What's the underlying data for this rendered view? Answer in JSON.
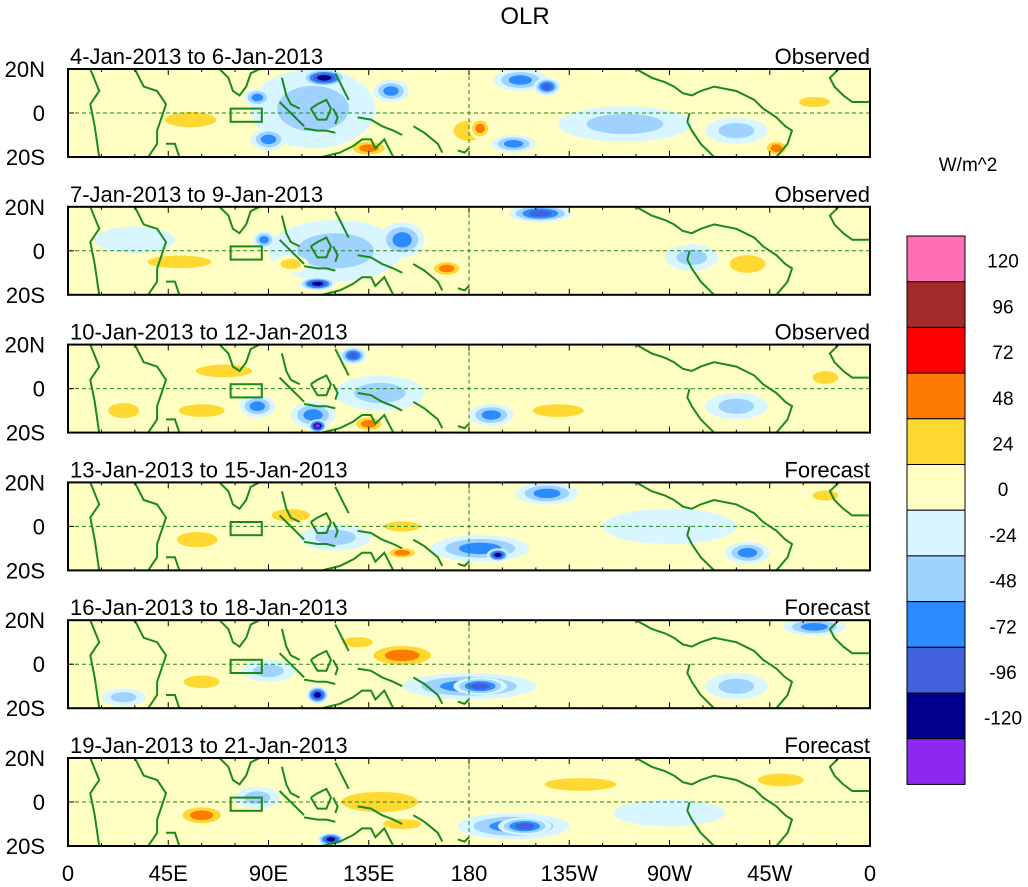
{
  "chart_data": {
    "type": "heatmap",
    "title": "OLR",
    "units_label": "W/m^2",
    "x_ticks": [
      "0",
      "45E",
      "90E",
      "135E",
      "180",
      "135W",
      "90W",
      "45W",
      "0"
    ],
    "lat_ticks": [
      "20N",
      "0",
      "20S"
    ],
    "lat_range": [
      -20,
      20
    ],
    "lon_range": [
      0,
      360
    ],
    "legend_ticks": [
      "120",
      "96",
      "72",
      "48",
      "24",
      "0",
      "-24",
      "-48",
      "-72",
      "-96",
      "-120"
    ],
    "color_bins": [
      {
        "lo": 120,
        "hi": 144,
        "color": "#ff6eb4"
      },
      {
        "lo": 96,
        "hi": 120,
        "color": "#a52a2a"
      },
      {
        "lo": 72,
        "hi": 96,
        "color": "#ff0000"
      },
      {
        "lo": 48,
        "hi": 72,
        "color": "#ff7a00"
      },
      {
        "lo": 24,
        "hi": 48,
        "color": "#ffd832"
      },
      {
        "lo": 0,
        "hi": 24,
        "color": "#ffffc4"
      },
      {
        "lo": -24,
        "hi": 0,
        "color": "#d8f6ff"
      },
      {
        "lo": -48,
        "hi": -24,
        "color": "#a0d2ff"
      },
      {
        "lo": -72,
        "hi": -48,
        "color": "#2a8cff"
      },
      {
        "lo": -96,
        "hi": -72,
        "color": "#4060dc"
      },
      {
        "lo": -120,
        "hi": -96,
        "color": "#00008c"
      },
      {
        "lo": -144,
        "hi": -120,
        "color": "#8c28f0"
      }
    ],
    "panels": [
      {
        "period": "4-Jan-2013 to 6-Jan-2013",
        "kind": "Observed",
        "anomalies": [
          {
            "lon": 110,
            "lat": 2,
            "rlon": 28,
            "rlat": 18,
            "value": -30
          },
          {
            "lon": 115,
            "lat": 16,
            "rlon": 10,
            "rlat": 4,
            "value": -110
          },
          {
            "lon": 85,
            "lat": 7,
            "rlon": 6,
            "rlat": 4,
            "value": -60
          },
          {
            "lon": 145,
            "lat": 10,
            "rlon": 8,
            "rlat": 5,
            "value": -50
          },
          {
            "lon": 203,
            "lat": 15,
            "rlon": 12,
            "rlat": 5,
            "value": -70
          },
          {
            "lon": 215,
            "lat": 12,
            "rlon": 6,
            "rlat": 4,
            "value": -96
          },
          {
            "lon": 200,
            "lat": -14,
            "rlon": 10,
            "rlat": 4,
            "value": -55
          },
          {
            "lon": 90,
            "lat": -12,
            "rlon": 8,
            "rlat": 5,
            "value": -50
          },
          {
            "lon": 55,
            "lat": -3,
            "rlon": 20,
            "rlat": 6,
            "value": 30
          },
          {
            "lon": 180,
            "lat": -8,
            "rlon": 12,
            "rlat": 8,
            "value": 30
          },
          {
            "lon": 185,
            "lat": -7,
            "rlon": 5,
            "rlat": 5,
            "value": 55
          },
          {
            "lon": 135,
            "lat": -16,
            "rlon": 10,
            "rlat": 4,
            "value": 50
          },
          {
            "lon": 318,
            "lat": -16,
            "rlon": 6,
            "rlat": 4,
            "value": 55
          },
          {
            "lon": 300,
            "lat": -8,
            "rlon": 14,
            "rlat": 6,
            "value": -30
          },
          {
            "lon": 250,
            "lat": -5,
            "rlon": 30,
            "rlat": 8,
            "value": -25
          },
          {
            "lon": 335,
            "lat": 5,
            "rlon": 12,
            "rlat": 4,
            "value": 28
          }
        ]
      },
      {
        "period": "7-Jan-2013 to 9-Jan-2013",
        "kind": "Observed",
        "anomalies": [
          {
            "lon": 120,
            "lat": 0,
            "rlon": 30,
            "rlat": 14,
            "value": -35
          },
          {
            "lon": 112,
            "lat": -15,
            "rlon": 8,
            "rlat": 3,
            "value": -110
          },
          {
            "lon": 150,
            "lat": 5,
            "rlon": 10,
            "rlat": 8,
            "value": -55
          },
          {
            "lon": 212,
            "lat": 17,
            "rlon": 14,
            "rlat": 4,
            "value": -80
          },
          {
            "lon": 88,
            "lat": 5,
            "rlon": 5,
            "rlat": 4,
            "value": -55
          },
          {
            "lon": 170,
            "lat": -8,
            "rlon": 8,
            "rlat": 4,
            "value": 60
          },
          {
            "lon": 50,
            "lat": -5,
            "rlon": 25,
            "rlat": 5,
            "value": 28
          },
          {
            "lon": 100,
            "lat": -6,
            "rlon": 8,
            "rlat": 4,
            "value": 30
          },
          {
            "lon": 305,
            "lat": -6,
            "rlon": 14,
            "rlat": 7,
            "value": 30
          },
          {
            "lon": 280,
            "lat": -3,
            "rlon": 12,
            "rlat": 6,
            "value": -25
          },
          {
            "lon": 30,
            "lat": 5,
            "rlon": 18,
            "rlat": 6,
            "value": -20
          }
        ]
      },
      {
        "period": "10-Jan-2013 to 12-Jan-2013",
        "kind": "Observed",
        "anomalies": [
          {
            "lon": 110,
            "lat": -12,
            "rlon": 10,
            "rlat": 6,
            "value": -60
          },
          {
            "lon": 112,
            "lat": -17,
            "rlon": 4,
            "rlat": 3,
            "value": -130
          },
          {
            "lon": 128,
            "lat": 15,
            "rlon": 6,
            "rlat": 4,
            "value": -90
          },
          {
            "lon": 140,
            "lat": -2,
            "rlon": 20,
            "rlat": 8,
            "value": -30
          },
          {
            "lon": 190,
            "lat": -12,
            "rlon": 10,
            "rlat": 5,
            "value": -60
          },
          {
            "lon": 85,
            "lat": -8,
            "rlon": 8,
            "rlat": 5,
            "value": -55
          },
          {
            "lon": 70,
            "lat": 8,
            "rlon": 22,
            "rlat": 5,
            "value": 30
          },
          {
            "lon": 60,
            "lat": -10,
            "rlon": 18,
            "rlat": 5,
            "value": 30
          },
          {
            "lon": 135,
            "lat": -16,
            "rlon": 8,
            "rlat": 4,
            "value": 50
          },
          {
            "lon": 220,
            "lat": -10,
            "rlon": 20,
            "rlat": 5,
            "value": 28
          },
          {
            "lon": 340,
            "lat": 5,
            "rlon": 10,
            "rlat": 5,
            "value": 30
          },
          {
            "lon": 300,
            "lat": -8,
            "rlon": 14,
            "rlat": 6,
            "value": -30
          },
          {
            "lon": 25,
            "lat": -10,
            "rlon": 12,
            "rlat": 6,
            "value": 25
          }
        ]
      },
      {
        "period": "13-Jan-2013 to 15-Jan-2013",
        "kind": "Forecast",
        "anomalies": [
          {
            "lon": 185,
            "lat": -10,
            "rlon": 22,
            "rlat": 6,
            "value": -50
          },
          {
            "lon": 193,
            "lat": -13,
            "rlon": 5,
            "rlat": 3,
            "value": -110
          },
          {
            "lon": 120,
            "lat": -5,
            "rlon": 16,
            "rlat": 6,
            "value": -45
          },
          {
            "lon": 215,
            "lat": 15,
            "rlon": 14,
            "rlat": 5,
            "value": -70
          },
          {
            "lon": 305,
            "lat": -12,
            "rlon": 10,
            "rlat": 5,
            "value": -65
          },
          {
            "lon": 58,
            "lat": -6,
            "rlon": 16,
            "rlat": 6,
            "value": 45
          },
          {
            "lon": 150,
            "lat": 0,
            "rlon": 14,
            "rlat": 4,
            "value": 30
          },
          {
            "lon": 150,
            "lat": -12,
            "rlon": 8,
            "rlat": 3,
            "value": 55
          },
          {
            "lon": 100,
            "lat": 5,
            "rlon": 15,
            "rlat": 5,
            "value": 28
          },
          {
            "lon": 340,
            "lat": 14,
            "rlon": 10,
            "rlat": 4,
            "value": 30
          },
          {
            "lon": 270,
            "lat": 0,
            "rlon": 30,
            "rlat": 8,
            "value": -20
          }
        ]
      },
      {
        "period": "16-Jan-2013 to 18-Jan-2013",
        "kind": "Forecast",
        "anomalies": [
          {
            "lon": 180,
            "lat": -10,
            "rlon": 30,
            "rlat": 6,
            "value": -50
          },
          {
            "lon": 185,
            "lat": -10,
            "rlon": 12,
            "rlat": 4,
            "value": -80
          },
          {
            "lon": 112,
            "lat": -14,
            "rlon": 5,
            "rlat": 4,
            "value": -115
          },
          {
            "lon": 90,
            "lat": -3,
            "rlon": 12,
            "rlat": 5,
            "value": -40
          },
          {
            "lon": 335,
            "lat": 17,
            "rlon": 14,
            "rlat": 4,
            "value": -60
          },
          {
            "lon": 150,
            "lat": 4,
            "rlon": 18,
            "rlat": 6,
            "value": 50
          },
          {
            "lon": 60,
            "lat": -8,
            "rlon": 14,
            "rlat": 5,
            "value": 30
          },
          {
            "lon": 130,
            "lat": 10,
            "rlon": 12,
            "rlat": 4,
            "value": 28
          },
          {
            "lon": 300,
            "lat": -10,
            "rlon": 14,
            "rlat": 6,
            "value": -28
          },
          {
            "lon": 25,
            "lat": -15,
            "rlon": 10,
            "rlat": 4,
            "value": -35
          }
        ]
      },
      {
        "period": "19-Jan-2013 to 21-Jan-2013",
        "kind": "Forecast",
        "anomalies": [
          {
            "lon": 200,
            "lat": -11,
            "rlon": 25,
            "rlat": 6,
            "value": -60
          },
          {
            "lon": 205,
            "lat": -11,
            "rlon": 12,
            "rlat": 4,
            "value": -85
          },
          {
            "lon": 118,
            "lat": -17,
            "rlon": 6,
            "rlat": 3,
            "value": -110
          },
          {
            "lon": 60,
            "lat": -6,
            "rlon": 12,
            "rlat": 5,
            "value": 55
          },
          {
            "lon": 140,
            "lat": 0,
            "rlon": 30,
            "rlat": 8,
            "value": 28
          },
          {
            "lon": 150,
            "lat": -10,
            "rlon": 15,
            "rlat": 4,
            "value": 30
          },
          {
            "lon": 230,
            "lat": 8,
            "rlon": 28,
            "rlat": 5,
            "value": 26
          },
          {
            "lon": 320,
            "lat": 10,
            "rlon": 18,
            "rlat": 5,
            "value": 28
          },
          {
            "lon": 85,
            "lat": 2,
            "rlon": 10,
            "rlat": 5,
            "value": -35
          },
          {
            "lon": 270,
            "lat": -5,
            "rlon": 25,
            "rlat": 6,
            "value": -22
          }
        ]
      }
    ]
  }
}
